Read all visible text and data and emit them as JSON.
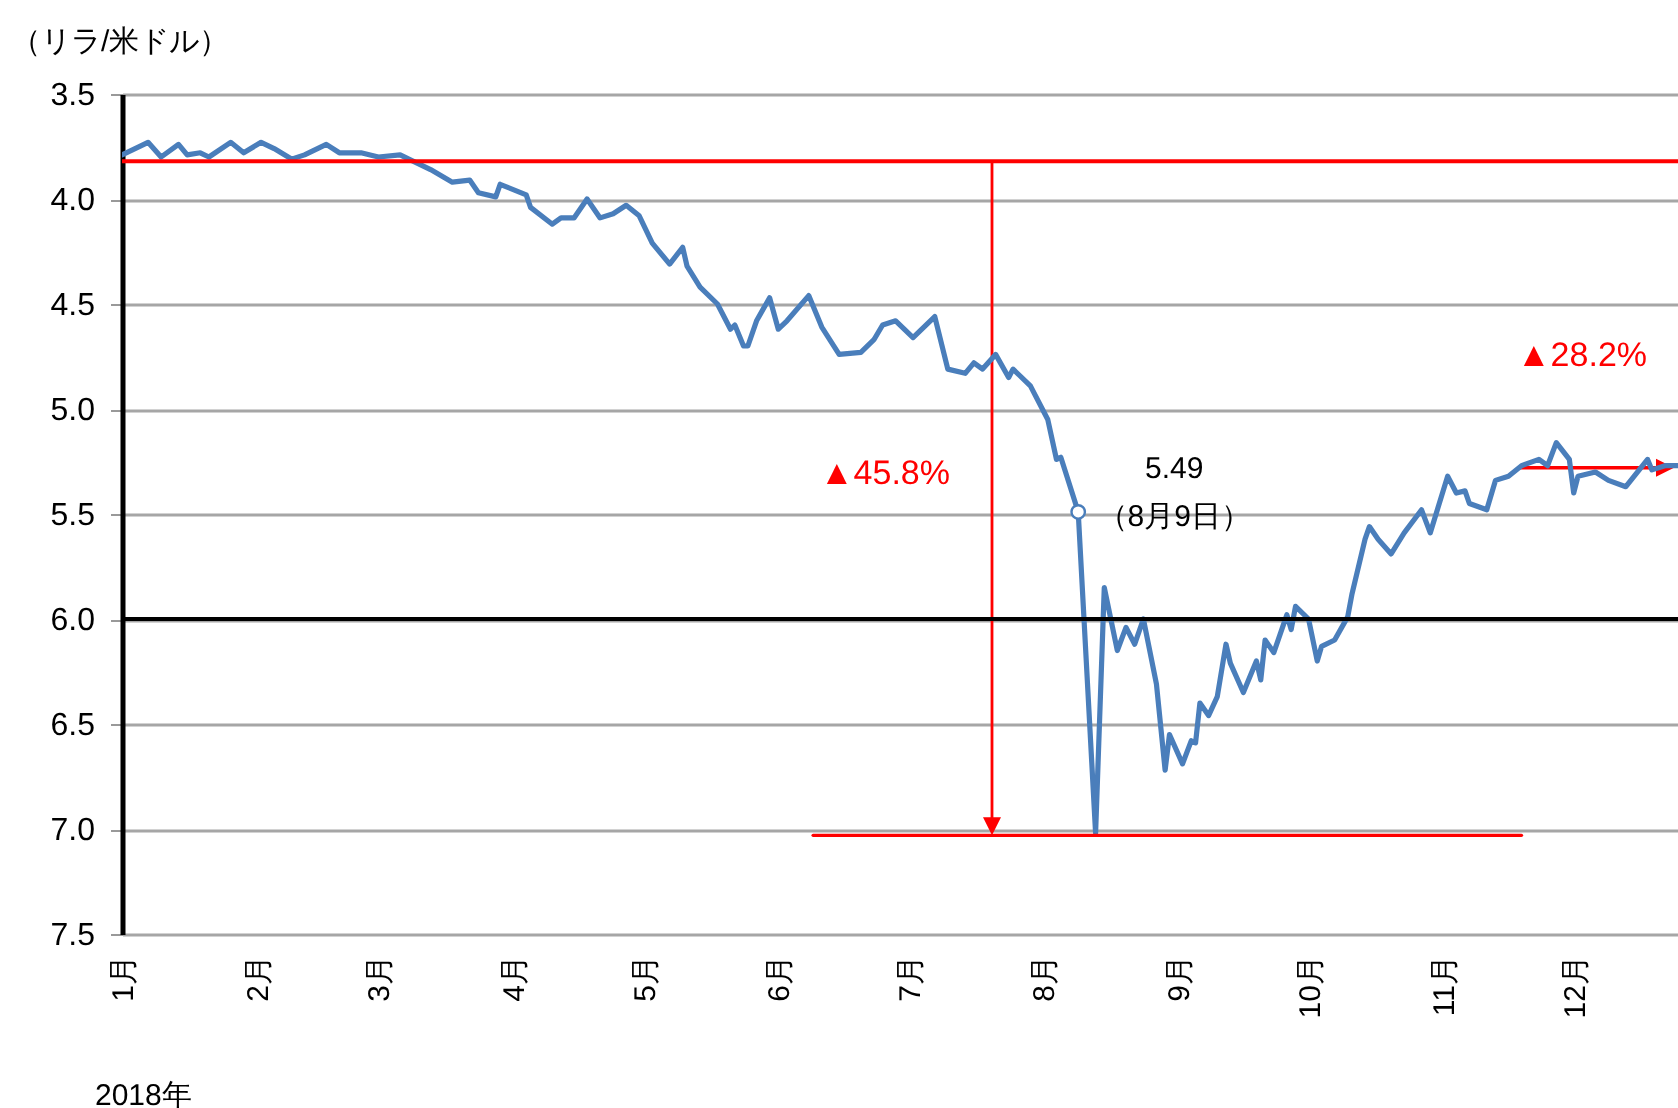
{
  "chart_data": {
    "type": "line",
    "ylabel": "（リラ/米ドル）",
    "xlabel": "2018年",
    "xlim": [
      "2018-01-01",
      "2018-12-25"
    ],
    "xticks": [
      {
        "value": "2018-01-01",
        "label": "1月"
      },
      {
        "value": "2018-02-01",
        "label": "2月"
      },
      {
        "value": "2018-03-01",
        "label": "3月"
      },
      {
        "value": "2018-04-01",
        "label": "4月"
      },
      {
        "value": "2018-05-01",
        "label": "5月"
      },
      {
        "value": "2018-06-01",
        "label": "6月"
      },
      {
        "value": "2018-07-01",
        "label": "7月"
      },
      {
        "value": "2018-08-01",
        "label": "8月"
      },
      {
        "value": "2018-09-01",
        "label": "9月"
      },
      {
        "value": "2018-10-01",
        "label": "10月"
      },
      {
        "value": "2018-11-01",
        "label": "11月"
      },
      {
        "value": "2018-12-01",
        "label": "12月"
      }
    ],
    "ylim": [
      7.5,
      3.5
    ],
    "yticks": [
      3.5,
      {
        "value": 4,
        "label": "4.0"
      },
      4.5,
      {
        "value": 5,
        "label": "5.0"
      },
      5.5,
      {
        "value": 6,
        "label": "6.0"
      },
      6.5,
      {
        "value": 7,
        "label": "7.0"
      },
      7.5
    ],
    "grid": "y",
    "series": [
      {
        "color": "#4a7ebb",
        "x": [
          "2018-01-01",
          "2018-01-07",
          "2018-01-10",
          "2018-01-14",
          "2018-01-16",
          "2018-01-19",
          "2018-01-21",
          "2018-01-26",
          "2018-01-29",
          "2018-02-02",
          "2018-02-05",
          "2018-02-09",
          "2018-02-12",
          "2018-02-17",
          "2018-02-20",
          "2018-02-25",
          "2018-03-01",
          "2018-03-06",
          "2018-03-08",
          "2018-03-13",
          "2018-03-18",
          "2018-03-22",
          "2018-03-24",
          "2018-03-28",
          "2018-03-29",
          "2018-04-04",
          "2018-04-05",
          "2018-04-10",
          "2018-04-12",
          "2018-04-15",
          "2018-04-18",
          "2018-04-21",
          "2018-04-24",
          "2018-04-27",
          "2018-04-30",
          "2018-05-03",
          "2018-05-07",
          "2018-05-10",
          "2018-05-11",
          "2018-05-14",
          "2018-05-18",
          "2018-05-21",
          "2018-05-22",
          "2018-05-24",
          "2018-05-25",
          "2018-05-27",
          "2018-05-30",
          "2018-06-01",
          "2018-06-03",
          "2018-06-08",
          "2018-06-11",
          "2018-06-15",
          "2018-06-20",
          "2018-06-23",
          "2018-06-25",
          "2018-06-28",
          "2018-07-02",
          "2018-07-07",
          "2018-07-10",
          "2018-07-14",
          "2018-07-16",
          "2018-07-18",
          "2018-07-21",
          "2018-07-24",
          "2018-07-25",
          "2018-07-29",
          "2018-08-02",
          "2018-08-04",
          "2018-08-05",
          "2018-08-09",
          "2018-08-13",
          "2018-08-15",
          "2018-08-18",
          "2018-08-20",
          "2018-08-22",
          "2018-08-24",
          "2018-08-27",
          "2018-08-29",
          "2018-08-30",
          "2018-09-02",
          "2018-09-04",
          "2018-09-05",
          "2018-09-06",
          "2018-09-08",
          "2018-09-10",
          "2018-09-12",
          "2018-09-13",
          "2018-09-16",
          "2018-09-19",
          "2018-09-20",
          "2018-09-21",
          "2018-09-23",
          "2018-09-26",
          "2018-09-27",
          "2018-09-28",
          "2018-10-01",
          "2018-10-03",
          "2018-10-04",
          "2018-10-07",
          "2018-10-10",
          "2018-10-11",
          "2018-10-14",
          "2018-10-15",
          "2018-10-17",
          "2018-10-20",
          "2018-10-23",
          "2018-10-27",
          "2018-10-29",
          "2018-11-02",
          "2018-11-04",
          "2018-11-06",
          "2018-11-07",
          "2018-11-11",
          "2018-11-13",
          "2018-11-16",
          "2018-11-19",
          "2018-11-23",
          "2018-11-25",
          "2018-11-27",
          "2018-11-30",
          "2018-12-01",
          "2018-12-02",
          "2018-12-06",
          "2018-12-09",
          "2018-12-13",
          "2018-12-18",
          "2018-12-19",
          "2018-12-22",
          "2018-12-25"
        ],
        "values": [
          3.79,
          3.73,
          3.8,
          3.74,
          3.79,
          3.78,
          3.8,
          3.73,
          3.78,
          3.73,
          3.76,
          3.81,
          3.79,
          3.74,
          3.78,
          3.78,
          3.8,
          3.79,
          3.81,
          3.86,
          3.92,
          3.91,
          3.97,
          3.99,
          3.93,
          3.98,
          4.04,
          4.12,
          4.09,
          4.09,
          4.0,
          4.09,
          4.07,
          4.03,
          4.08,
          4.21,
          4.31,
          4.23,
          4.32,
          4.42,
          4.5,
          4.62,
          4.6,
          4.7,
          4.7,
          4.58,
          4.47,
          4.62,
          4.58,
          4.46,
          4.61,
          4.74,
          4.73,
          4.67,
          4.6,
          4.58,
          4.66,
          4.56,
          4.81,
          4.83,
          4.78,
          4.81,
          4.74,
          4.85,
          4.81,
          4.89,
          5.05,
          5.24,
          5.23,
          5.49,
          7.02,
          5.85,
          6.15,
          6.04,
          6.12,
          6.0,
          6.31,
          6.72,
          6.55,
          6.69,
          6.58,
          6.59,
          6.4,
          6.46,
          6.37,
          6.12,
          6.21,
          6.35,
          6.2,
          6.29,
          6.1,
          6.16,
          5.98,
          6.05,
          5.94,
          6.0,
          6.2,
          6.13,
          6.1,
          5.99,
          5.88,
          5.62,
          5.56,
          5.62,
          5.69,
          5.59,
          5.48,
          5.59,
          5.32,
          5.4,
          5.39,
          5.45,
          5.48,
          5.34,
          5.32,
          5.27,
          5.24,
          5.27,
          5.16,
          5.24,
          5.4,
          5.32,
          5.3,
          5.34,
          5.37,
          5.24,
          5.29,
          5.27,
          5.27
        ]
      },
      {
        "color": "#ff0000",
        "x": [
          "2018-06-09",
          "2018-11-19"
        ],
        "values": [
          7.03,
          7.03
        ]
      }
    ],
    "ref_lines": [
      {
        "axis": "y",
        "value": 3.82,
        "color": "#ff0000"
      },
      {
        "axis": "y",
        "value": 6.0,
        "color": "#000000"
      }
    ],
    "annotations": [
      "▲45.8%",
      {
        "text": "5.49\n（8月9日）",
        "x": "2018-08-09",
        "y": 5.49
      },
      {
        "text": "▲28.2%",
        "x": "2018-12-25",
        "y": 5.28
      }
    ]
  }
}
